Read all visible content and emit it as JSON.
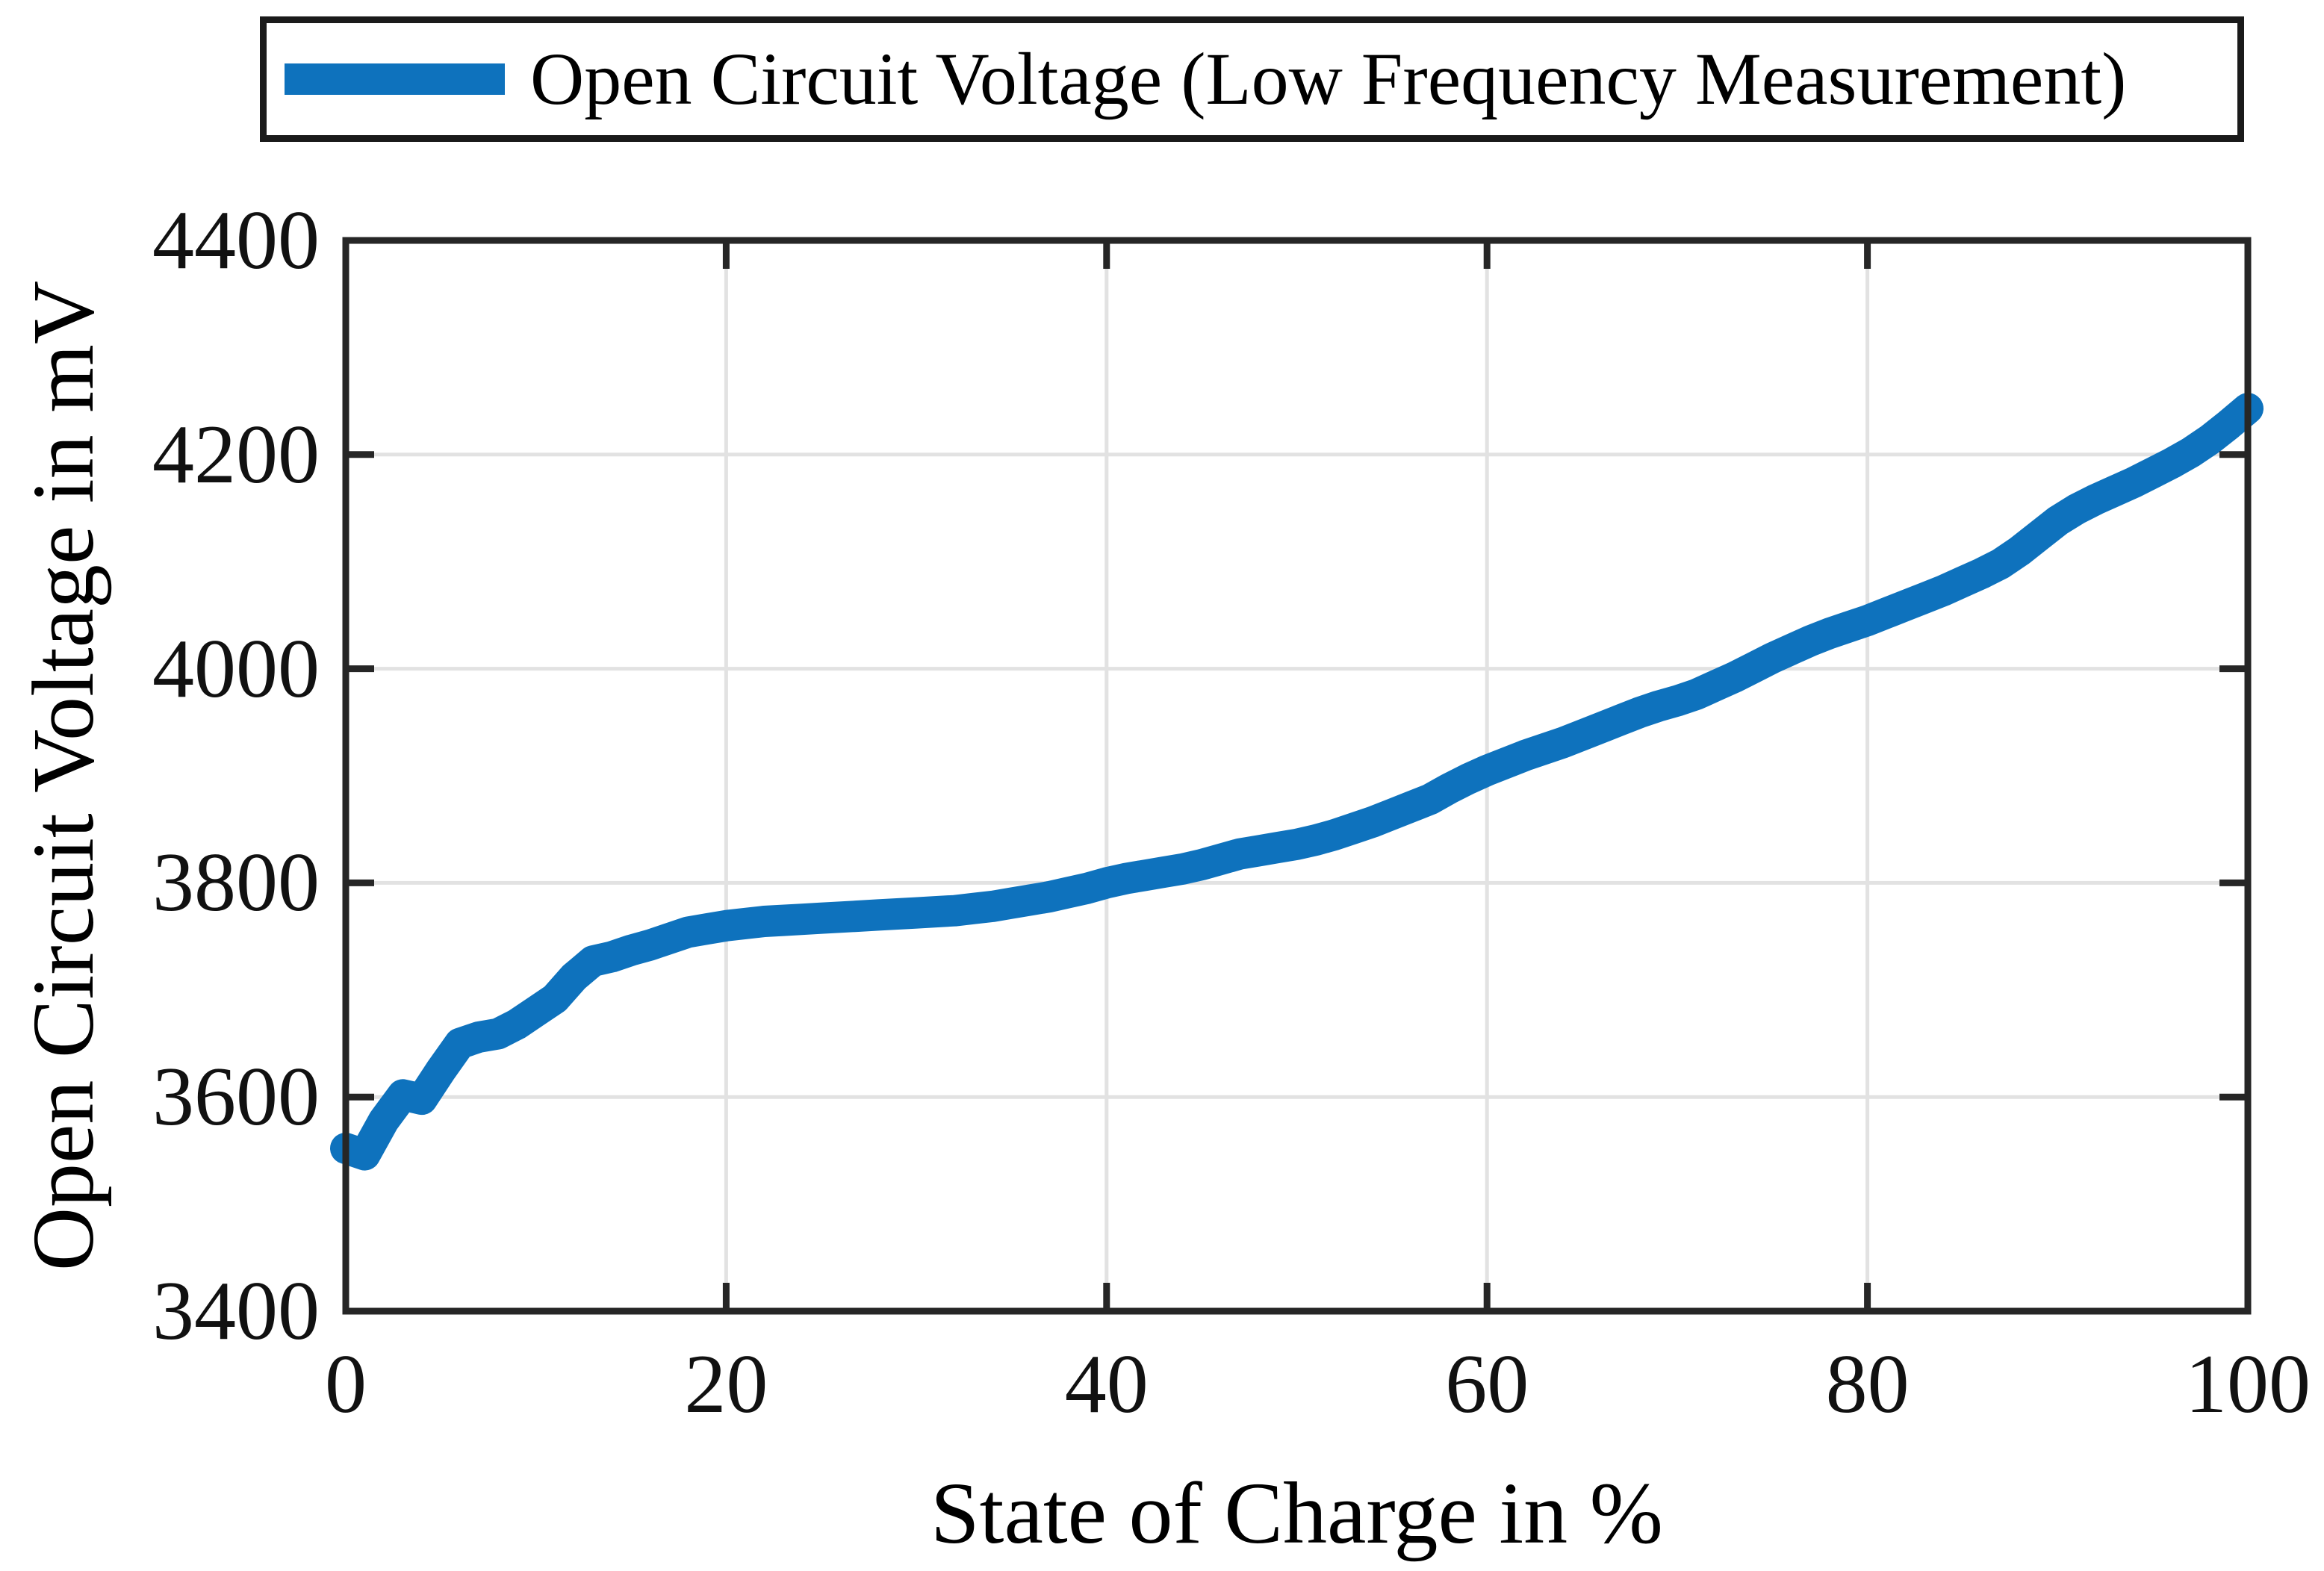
{
  "figure": {
    "legend": {
      "label": "Open Circuit Voltage (Low Frequency Measurement)",
      "line_color": "#0e72bd"
    },
    "x_axis": {
      "label": "State of Charge in %",
      "ticks": [
        "0",
        "20",
        "40",
        "60",
        "80",
        "100"
      ]
    },
    "y_axis": {
      "label": "Open Circuit Voltage in mV",
      "ticks": [
        "3400",
        "3600",
        "3800",
        "4000",
        "4200",
        "4400"
      ]
    },
    "colors": {
      "line": "#0e72bd",
      "grid": "#e2e2e2",
      "axis_frame": "#262626",
      "text": "#000000",
      "background": "#ffffff"
    }
  },
  "chart_data": {
    "type": "line",
    "title": "",
    "xlabel": "State of Charge in %",
    "ylabel": "Open Circuit Voltage in mV",
    "xlim": [
      0,
      100
    ],
    "ylim": [
      3400,
      4400
    ],
    "x_ticks": [
      0,
      20,
      40,
      60,
      80,
      100
    ],
    "y_ticks": [
      3400,
      3600,
      3800,
      4000,
      4200,
      4400
    ],
    "grid": true,
    "legend_position": "top",
    "series": [
      {
        "name": "Open Circuit Voltage (Low Frequency Measurement)",
        "color": "#0e72bd",
        "x_start": 0,
        "x_step": 1,
        "values": [
          3552,
          3546,
          3578,
          3602,
          3598,
          3625,
          3650,
          3656,
          3659,
          3668,
          3680,
          3692,
          3712,
          3727,
          3731,
          3737,
          3742,
          3748,
          3754,
          3757,
          3760,
          3762,
          3764,
          3765,
          3766,
          3767,
          3768,
          3769,
          3770,
          3771,
          3772,
          3773,
          3774,
          3776,
          3778,
          3781,
          3784,
          3787,
          3791,
          3795,
          3800,
          3804,
          3807,
          3810,
          3813,
          3817,
          3822,
          3827,
          3830,
          3833,
          3836,
          3840,
          3845,
          3851,
          3857,
          3864,
          3871,
          3878,
          3888,
          3897,
          3905,
          3912,
          3919,
          3925,
          3931,
          3938,
          3945,
          3952,
          3959,
          3965,
          3970,
          3976,
          3984,
          3992,
          4001,
          4010,
          4018,
          4026,
          4033,
          4039,
          4045,
          4052,
          4059,
          4066,
          4073,
          4081,
          4089,
          4098,
          4110,
          4124,
          4138,
          4149,
          4158,
          4166,
          4174,
          4183,
          4192,
          4202,
          4214,
          4228,
          4243
        ]
      }
    ]
  }
}
